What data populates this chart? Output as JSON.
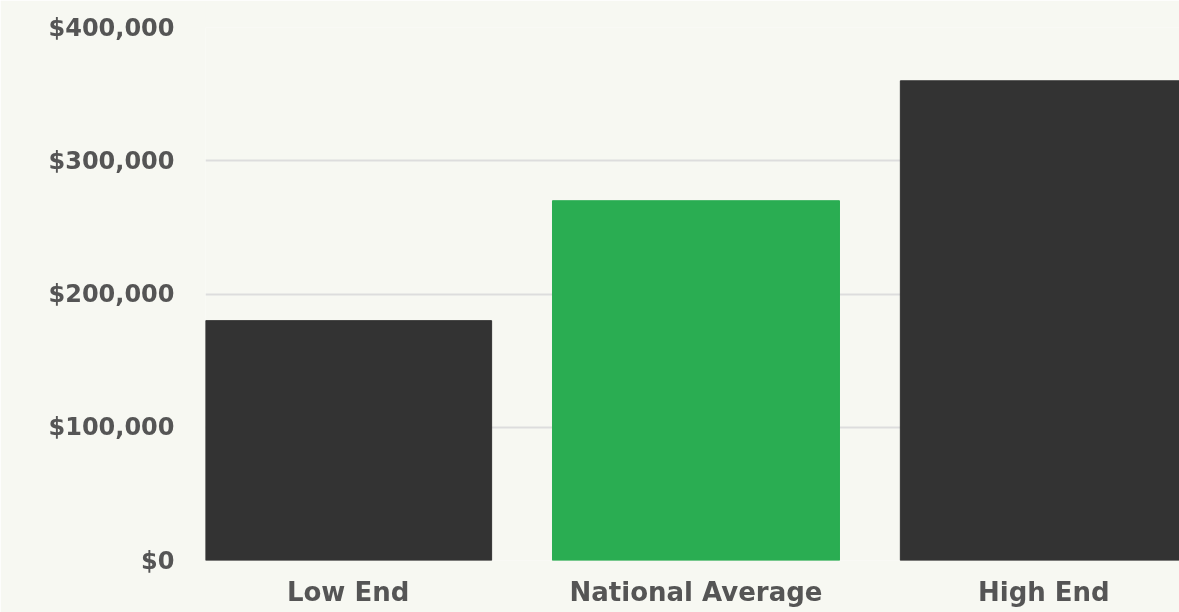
{
  "chart_data": {
    "type": "bar",
    "categories": [
      "Low End",
      "National Average",
      "High End"
    ],
    "values": [
      180000,
      270000,
      360000
    ],
    "colors": [
      "#333333",
      "#2aad52",
      "#333333"
    ],
    "ylim": [
      0,
      400000
    ],
    "yticks": [
      {
        "value": 0,
        "label": "$0"
      },
      {
        "value": 100000,
        "label": "$100,000"
      },
      {
        "value": 200000,
        "label": "$200,000"
      },
      {
        "value": 300000,
        "label": "$300,000"
      },
      {
        "value": 400000,
        "label": "$400,000"
      }
    ],
    "grid": "y"
  }
}
